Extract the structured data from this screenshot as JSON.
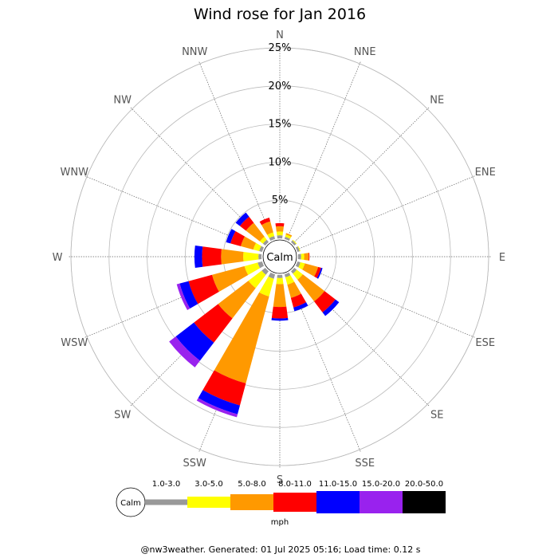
{
  "chart_data": {
    "type": "wind-rose",
    "title": "Wind rose for Jan 2016",
    "directions": [
      "N",
      "NNE",
      "NE",
      "ENE",
      "E",
      "ESE",
      "SE",
      "SSE",
      "S",
      "SSW",
      "SW",
      "WSW",
      "W",
      "WNW",
      "NW",
      "NNW"
    ],
    "radial_ticks": [
      "5%",
      "10%",
      "15%",
      "20%",
      "25%"
    ],
    "radial_max_percent": 25,
    "calm_label": "Calm",
    "speed_bins": [
      {
        "label": "1.0-3.0",
        "color": "#999999"
      },
      {
        "label": "3.0-5.0",
        "color": "#ffff00"
      },
      {
        "label": "5.0-8.0",
        "color": "#ff9900"
      },
      {
        "label": "8.0-11.0",
        "color": "#ff0000"
      },
      {
        "label": "11.0-15.0",
        "color": "#0000ff"
      },
      {
        "label": "15.0-20.0",
        "color": "#9922ee"
      },
      {
        "label": "20.0-50.0",
        "color": "#000000"
      }
    ],
    "units": "mph",
    "cumulative_percent": {
      "N": [
        0.4,
        0.9,
        1.6,
        2.0,
        2.0,
        2.0,
        2.0
      ],
      "NNE": [
        0.3,
        0.6,
        0.8,
        0.8,
        0.8,
        0.8,
        0.8
      ],
      "NE": [
        0.3,
        0.4,
        0.4,
        0.4,
        0.4,
        0.4,
        0.4
      ],
      "ENE": [
        0.3,
        0.4,
        0.4,
        0.4,
        0.4,
        0.4,
        0.4
      ],
      "E": [
        0.4,
        0.8,
        1.4,
        1.5,
        1.5,
        1.5,
        1.5
      ],
      "ESE": [
        0.4,
        1.0,
        2.8,
        3.2,
        3.4,
        3.4,
        3.4
      ],
      "SE": [
        0.4,
        1.4,
        5.0,
        6.8,
        7.4,
        7.4,
        7.4
      ],
      "SSE": [
        0.4,
        1.4,
        3.2,
        4.5,
        5.0,
        5.0,
        5.0
      ],
      "S": [
        0.4,
        1.2,
        4.2,
        5.7,
        6.0,
        6.0,
        6.0
      ],
      "SSW": [
        0.6,
        3.0,
        14.8,
        17.8,
        19.0,
        19.4,
        19.4
      ],
      "SW": [
        0.6,
        2.8,
        7.8,
        11.8,
        14.8,
        15.9,
        15.9
      ],
      "WSW": [
        0.6,
        2.4,
        6.8,
        10.0,
        11.2,
        11.6,
        11.6
      ],
      "W": [
        0.4,
        2.4,
        5.3,
        7.8,
        8.8,
        8.8,
        8.8
      ],
      "WNW": [
        0.4,
        1.2,
        2.9,
        4.3,
        4.9,
        4.9,
        4.9
      ],
      "NW": [
        0.4,
        0.9,
        3.2,
        4.2,
        4.9,
        4.9,
        4.9
      ],
      "NNW": [
        0.4,
        0.9,
        2.4,
        2.9,
        2.9,
        2.9,
        2.9
      ]
    }
  },
  "footer": "@nw3weather. Generated: 01 Jul 2025 05:16; Load time: 0.12 s"
}
